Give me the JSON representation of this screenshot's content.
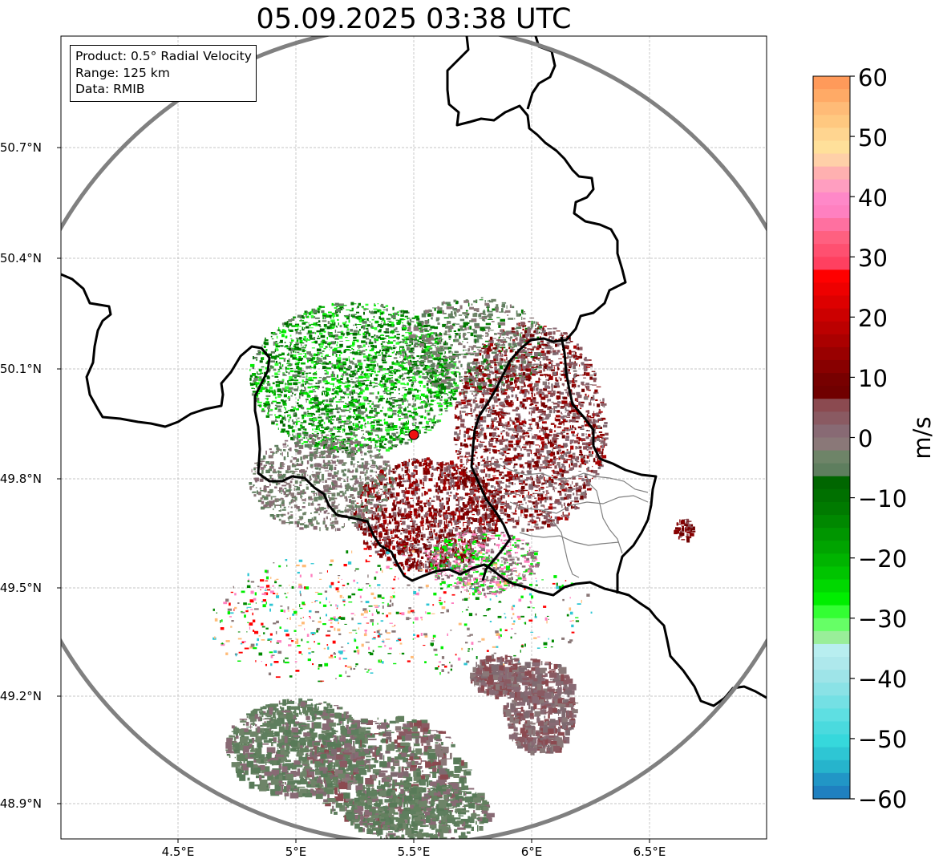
{
  "title": "05.09.2025 03:38 UTC",
  "info": {
    "product": "Product: 0.5° Radial Velocity",
    "range": "Range: 125 km",
    "data": "Data: RMIB"
  },
  "map": {
    "lat_ticks": [
      "50.7°N",
      "50.4°N",
      "50.1°N",
      "49.8°N",
      "49.5°N",
      "49.2°N",
      "48.9°N"
    ],
    "lon_ticks": [
      "4.5°E",
      "5°E",
      "5.5°E",
      "6°E",
      "6.5°E"
    ],
    "radar_site": {
      "lon": 5.5,
      "lat": 49.92
    },
    "range_ring_color": "#808080",
    "border_color": "#000000",
    "grid": true
  },
  "colorbar": {
    "label": "m/s",
    "ticks": [
      "60",
      "50",
      "40",
      "30",
      "20",
      "10",
      "0",
      "−10",
      "−20",
      "−30",
      "−40",
      "−50",
      "−60"
    ],
    "min": -60,
    "max": 60,
    "colors_top_to_bottom": [
      "#ff9a5a",
      "#ffaa66",
      "#ffbb77",
      "#ffc880",
      "#ffd590",
      "#ffe09a",
      "#ffd0a8",
      "#ffb0b0",
      "#ff9ec0",
      "#ff88c8",
      "#ff80c0",
      "#ff70a0",
      "#ff6080",
      "#ff5070",
      "#ff4060",
      "#ff0000",
      "#ee0000",
      "#dd0000",
      "#cc0000",
      "#bb0000",
      "#aa0000",
      "#990000",
      "#880000",
      "#770000",
      "#700000",
      "#8b4a50",
      "#8a5a62",
      "#886a74",
      "#8a7878",
      "#6e8468",
      "#5e7e5e",
      "#006600",
      "#007000",
      "#007a00",
      "#008800",
      "#009600",
      "#00a400",
      "#00b400",
      "#00c400",
      "#00d800",
      "#00ee00",
      "#33ff33",
      "#66ff66",
      "#99ee99",
      "#b8eef0",
      "#aee8ec",
      "#9ee4e8",
      "#8ae2e6",
      "#74e0e4",
      "#5edfe2",
      "#4adade",
      "#36d8dc",
      "#2ec6d4",
      "#26b4cc",
      "#2196c6",
      "#1f80c0"
    ]
  }
}
